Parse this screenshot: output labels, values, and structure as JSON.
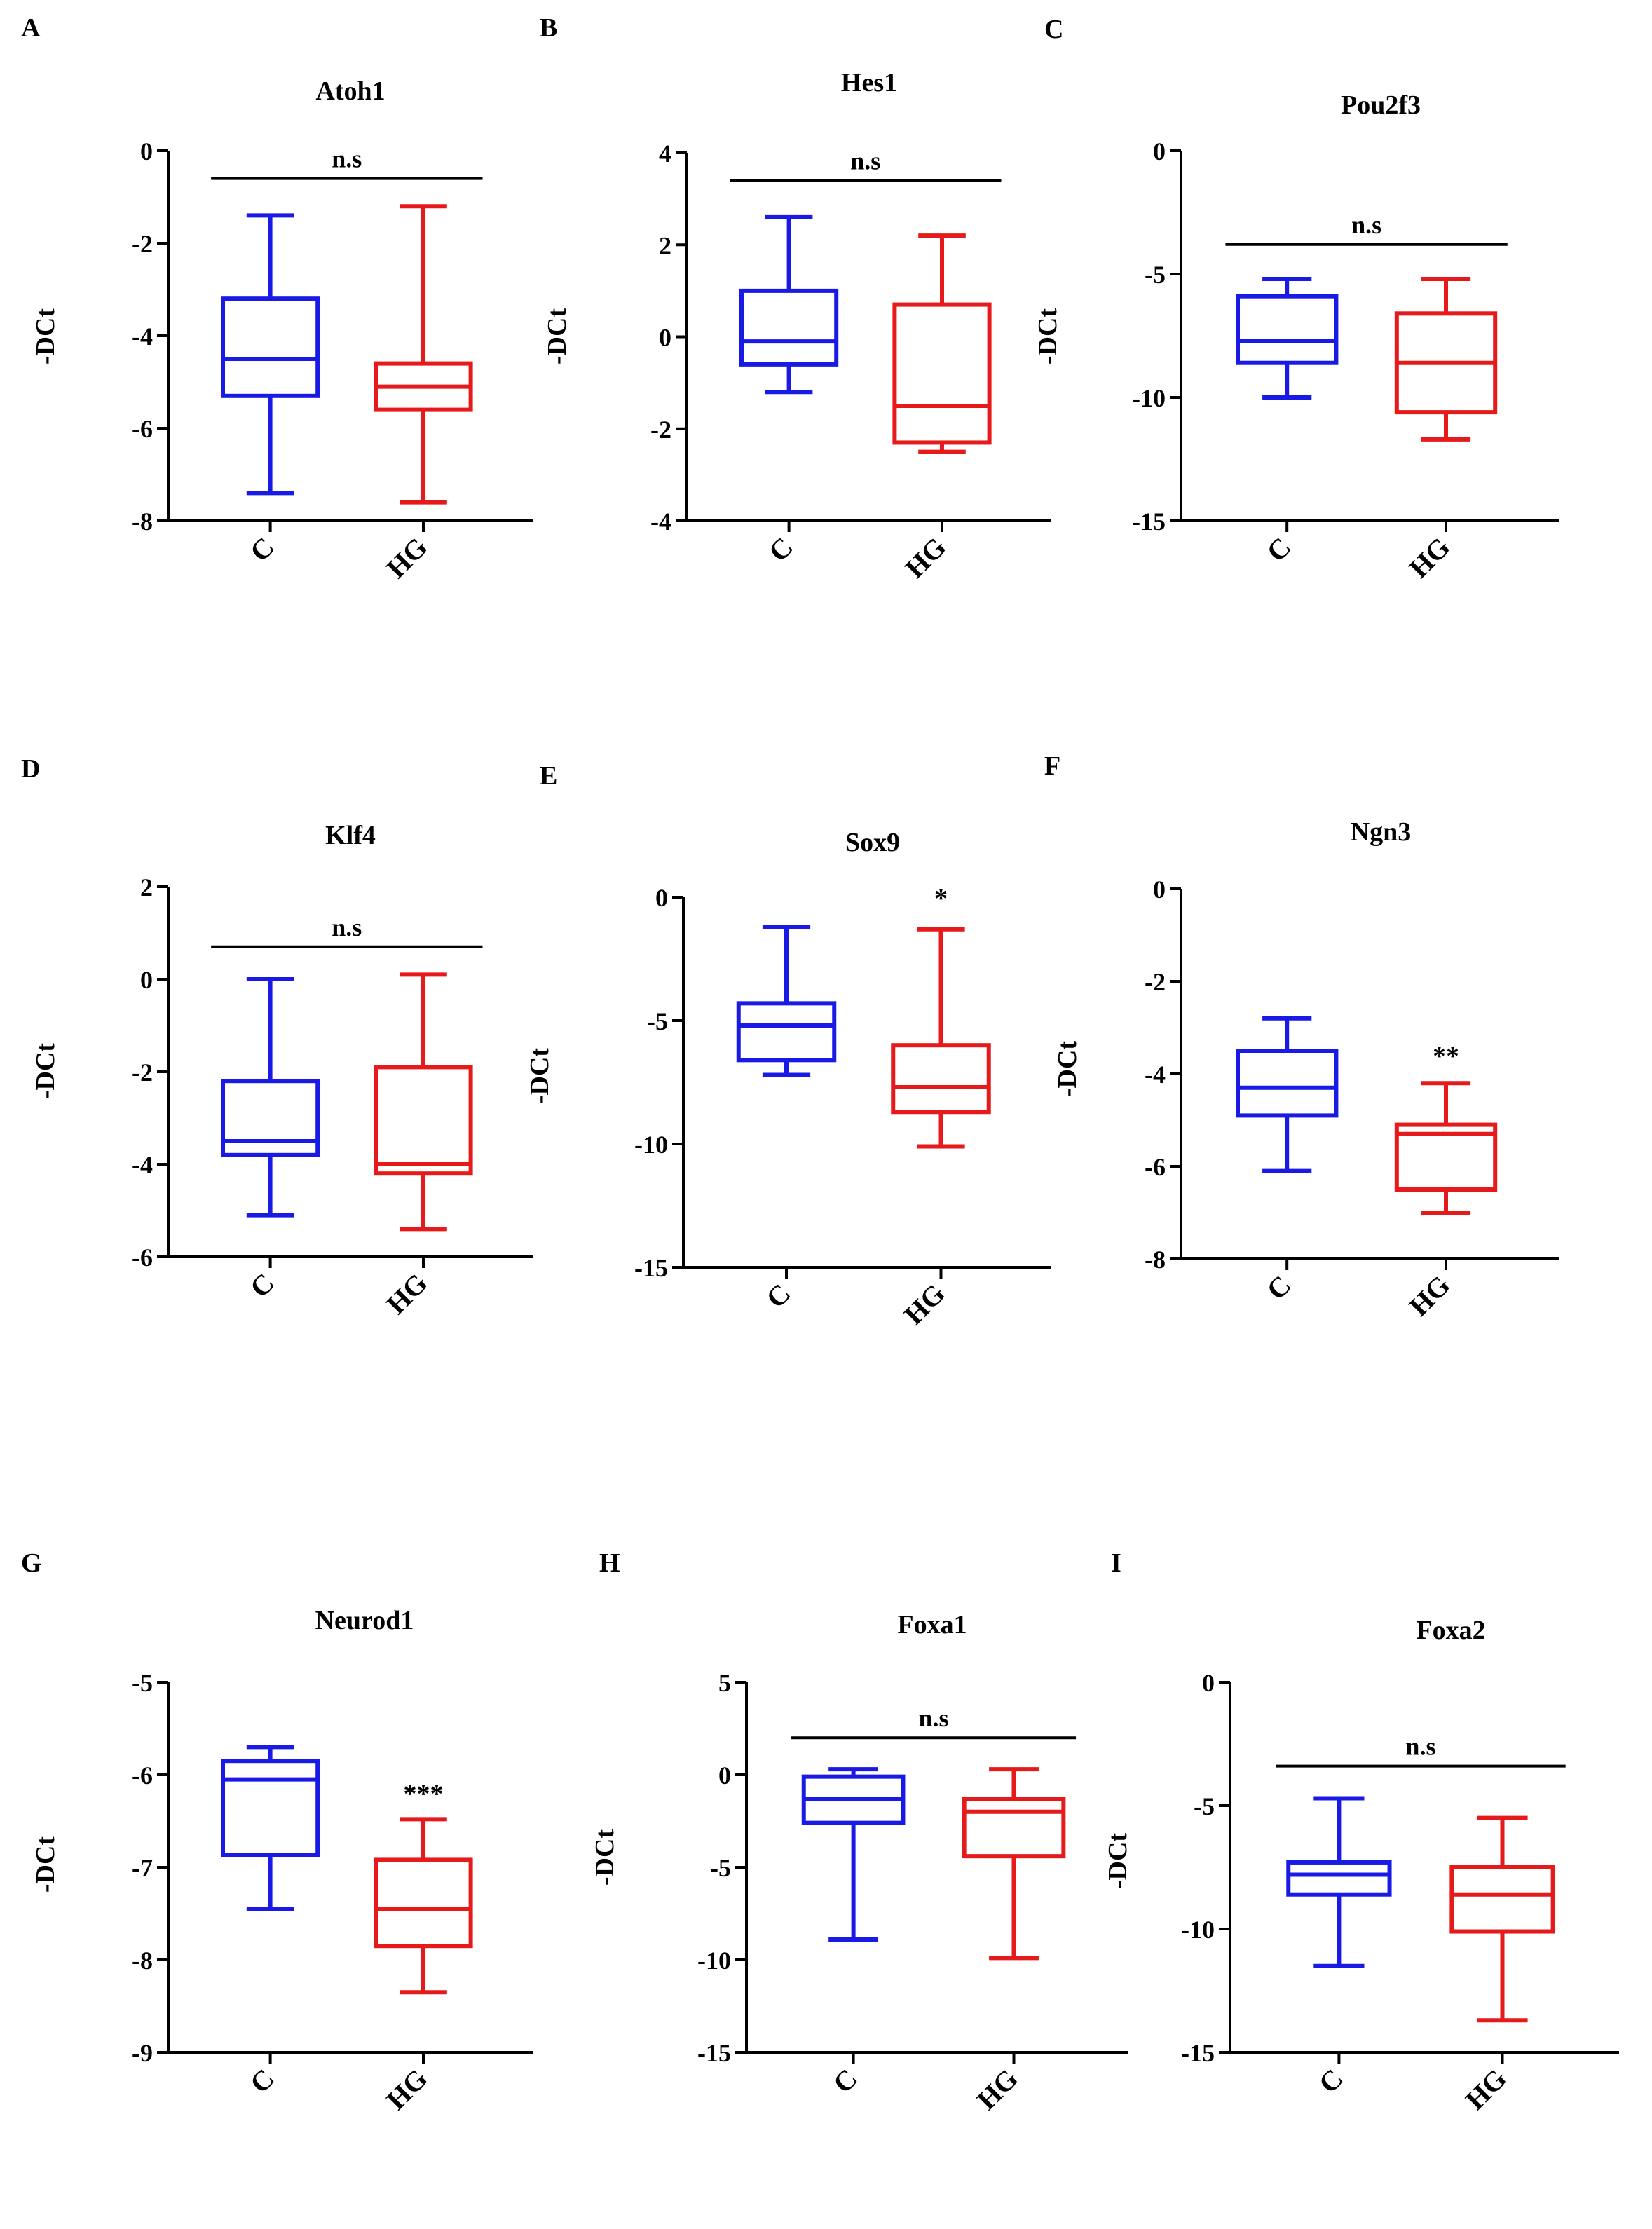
{
  "figure": {
    "panels": [
      "A",
      "B",
      "C",
      "D",
      "E",
      "F",
      "G",
      "H",
      "I"
    ]
  },
  "colors": {
    "C": "#1a1ae6",
    "HG": "#e61a1a",
    "axis": "#000000"
  },
  "chart_data": [
    {
      "panel": "A",
      "type": "box",
      "title": "Atoh1",
      "ylabel": "-DCt",
      "ylim": [
        -8,
        0
      ],
      "yticks": [
        0,
        -2,
        -4,
        -6,
        -8
      ],
      "ytick_labels": [
        "0",
        "-2",
        "-4",
        "-6",
        "-8"
      ],
      "categories": [
        "C",
        "HG"
      ],
      "boxes": [
        {
          "group": "C",
          "min": -7.4,
          "q1": -5.3,
          "median": -4.5,
          "q3": -3.2,
          "max": -1.4
        },
        {
          "group": "HG",
          "min": -7.6,
          "q1": -5.6,
          "median": -5.1,
          "q3": -4.6,
          "max": -1.2
        }
      ],
      "significance": {
        "label": "n.s",
        "type": "bracket",
        "y": -0.6
      }
    },
    {
      "panel": "B",
      "type": "box",
      "title": "Hes1",
      "ylabel": "-DCt",
      "ylim": [
        -4,
        4
      ],
      "yticks": [
        4,
        2,
        0,
        -2,
        -4
      ],
      "ytick_labels": [
        "4",
        "2",
        "0",
        "-2",
        "-4"
      ],
      "categories": [
        "C",
        "HG"
      ],
      "boxes": [
        {
          "group": "C",
          "min": -1.2,
          "q1": -0.6,
          "median": -0.1,
          "q3": 1.0,
          "max": 2.6
        },
        {
          "group": "HG",
          "min": -2.5,
          "q1": -2.3,
          "median": -1.5,
          "q3": 0.7,
          "max": 2.2
        }
      ],
      "significance": {
        "label": "n.s",
        "type": "bracket",
        "y": 3.4
      }
    },
    {
      "panel": "C",
      "type": "box",
      "title": "Pou2f3",
      "ylabel": "-DCt",
      "ylim": [
        -15,
        0
      ],
      "yticks": [
        0,
        -5,
        -10,
        -15
      ],
      "ytick_labels": [
        "0",
        "-5",
        "-10",
        "-15"
      ],
      "categories": [
        "C",
        "HG"
      ],
      "boxes": [
        {
          "group": "C",
          "min": -10.0,
          "q1": -8.6,
          "median": -7.7,
          "q3": -5.9,
          "max": -5.2
        },
        {
          "group": "HG",
          "min": -11.7,
          "q1": -10.6,
          "median": -8.6,
          "q3": -6.6,
          "max": -5.2
        }
      ],
      "significance": {
        "label": "n.s",
        "type": "bracket",
        "y": -3.8
      }
    },
    {
      "panel": "D",
      "type": "box",
      "title": "Klf4",
      "ylabel": "-DCt",
      "ylim": [
        -6,
        2
      ],
      "yticks": [
        2,
        0,
        -2,
        -4,
        -6
      ],
      "ytick_labels": [
        "2",
        "0",
        "-2",
        "-4",
        "-6"
      ],
      "categories": [
        "C",
        "HG"
      ],
      "boxes": [
        {
          "group": "C",
          "min": -5.1,
          "q1": -3.8,
          "median": -3.5,
          "q3": -2.2,
          "max": 0.0
        },
        {
          "group": "HG",
          "min": -5.4,
          "q1": -4.2,
          "median": -4.0,
          "q3": -1.9,
          "max": 0.1
        }
      ],
      "significance": {
        "label": "n.s",
        "type": "bracket",
        "y": 0.7
      }
    },
    {
      "panel": "E",
      "type": "box",
      "title": "Sox9",
      "ylabel": "-DCt",
      "ylim": [
        -15,
        0
      ],
      "yticks": [
        0,
        -5,
        -10,
        -15
      ],
      "ytick_labels": [
        "0",
        "-5",
        "-10",
        "-15"
      ],
      "categories": [
        "C",
        "HG"
      ],
      "boxes": [
        {
          "group": "C",
          "min": -7.2,
          "q1": -6.6,
          "median": -5.2,
          "q3": -4.3,
          "max": -1.2
        },
        {
          "group": "HG",
          "min": -10.1,
          "q1": -8.7,
          "median": -7.7,
          "q3": -6.0,
          "max": -1.3
        }
      ],
      "significance": {
        "label": "*",
        "type": "star",
        "y": -0.4
      }
    },
    {
      "panel": "F",
      "type": "box",
      "title": "Ngn3",
      "ylabel": "-DCt",
      "ylim": [
        -8,
        0
      ],
      "yticks": [
        0,
        -2,
        -4,
        -6,
        -8
      ],
      "ytick_labels": [
        "0",
        "-2",
        "-4",
        "-6",
        "-8"
      ],
      "categories": [
        "C",
        "HG"
      ],
      "boxes": [
        {
          "group": "C",
          "min": -6.1,
          "q1": -4.9,
          "median": -4.3,
          "q3": -3.5,
          "max": -2.8
        },
        {
          "group": "HG",
          "min": -7.0,
          "q1": -6.5,
          "median": -5.3,
          "q3": -5.1,
          "max": -4.2
        }
      ],
      "significance": {
        "label": "**",
        "type": "star",
        "y": -3.8
      }
    },
    {
      "panel": "G",
      "type": "box",
      "title": "Neurod1",
      "ylabel": "-DCt",
      "ylim": [
        -9,
        -5
      ],
      "yticks": [
        -5,
        -6,
        -7,
        -8,
        -9
      ],
      "ytick_labels": [
        "-5",
        "-6",
        "-7",
        "-8",
        "-9"
      ],
      "categories": [
        "C",
        "HG"
      ],
      "boxes": [
        {
          "group": "C",
          "min": -7.45,
          "q1": -6.87,
          "median": -6.05,
          "q3": -5.85,
          "max": -5.7
        },
        {
          "group": "HG",
          "min": -8.35,
          "q1": -7.85,
          "median": -7.45,
          "q3": -6.92,
          "max": -6.48
        }
      ],
      "significance": {
        "label": "***",
        "type": "star",
        "y": -6.3
      }
    },
    {
      "panel": "H",
      "type": "box",
      "title": "Foxa1",
      "ylabel": "-DCt",
      "ylim": [
        -15,
        5
      ],
      "yticks": [
        5,
        0,
        -5,
        -10,
        -15
      ],
      "ytick_labels": [
        "5",
        "0",
        "-5",
        "-10",
        "-15"
      ],
      "categories": [
        "C",
        "HG"
      ],
      "boxes": [
        {
          "group": "C",
          "min": -8.9,
          "q1": -2.6,
          "median": -1.3,
          "q3": -0.1,
          "max": 0.3
        },
        {
          "group": "HG",
          "min": -9.9,
          "q1": -4.4,
          "median": -2.0,
          "q3": -1.3,
          "max": 0.3
        }
      ],
      "significance": {
        "label": "n.s",
        "type": "bracket",
        "y": 2.0
      }
    },
    {
      "panel": "I",
      "type": "box",
      "title": "Foxa2",
      "ylabel": "-DCt",
      "ylim": [
        -15,
        0
      ],
      "yticks": [
        0,
        -5,
        -10,
        -15
      ],
      "ytick_labels": [
        "0",
        "-5",
        "-10",
        "-15"
      ],
      "categories": [
        "C",
        "HG"
      ],
      "boxes": [
        {
          "group": "C",
          "min": -11.5,
          "q1": -8.6,
          "median": -7.8,
          "q3": -7.3,
          "max": -4.7
        },
        {
          "group": "HG",
          "min": -13.7,
          "q1": -10.1,
          "median": -8.6,
          "q3": -7.5,
          "max": -5.5
        }
      ],
      "significance": {
        "label": "n.s",
        "type": "bracket",
        "y": -3.4
      }
    }
  ]
}
